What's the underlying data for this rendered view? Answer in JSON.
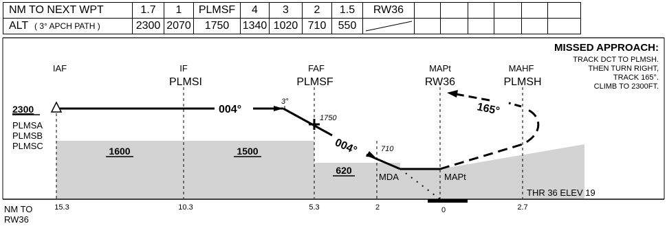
{
  "table": {
    "row1_label": "NM TO NEXT WPT",
    "row1_values": [
      "1.7",
      "1",
      "PLMSF",
      "4",
      "3",
      "2",
      "1.5",
      "RW36"
    ],
    "row2_label_main": "ALT",
    "row2_label_note": "( 3° APCH PATH )",
    "row2_values": [
      "2300",
      "2070",
      "1750",
      "1340",
      "1020",
      "710",
      "550"
    ]
  },
  "profile": {
    "fixes": {
      "iaf": {
        "type": "IAF"
      },
      "if": {
        "type": "IF",
        "name": "PLMSI"
      },
      "faf": {
        "type": "FAF",
        "name": "PLMSF"
      },
      "mapt": {
        "type": "MAPt",
        "name": "RW36"
      },
      "mahf": {
        "type": "MAHF",
        "name": "PLMSH"
      }
    },
    "left_labels": {
      "alt": "2300",
      "fixes": [
        "PLMSA",
        "PLMSB",
        "PLMSC"
      ]
    },
    "msa": [
      "1600",
      "1500",
      "620"
    ],
    "tracks": {
      "initial": "004°",
      "final": "004°",
      "missed": "165°"
    },
    "angle": "3°",
    "faf_alt": "1750",
    "step_alt": "710",
    "mda": "MDA",
    "mapt_label": "MAPt",
    "thr": "THR 36 ELEV 19",
    "missed": {
      "title": "MISSED APPROACH:",
      "lines": [
        "TRACK DCT TO PLMSH.",
        "THEN TURN RIGHT,",
        "TRACK 165°.",
        "CLIMB TO 2300FT."
      ]
    },
    "axis": {
      "label_lines": [
        "NM TO",
        "RW36"
      ],
      "ticks": [
        "15.3",
        "10.3",
        "5.3",
        "2",
        "0",
        "2.7"
      ]
    }
  }
}
